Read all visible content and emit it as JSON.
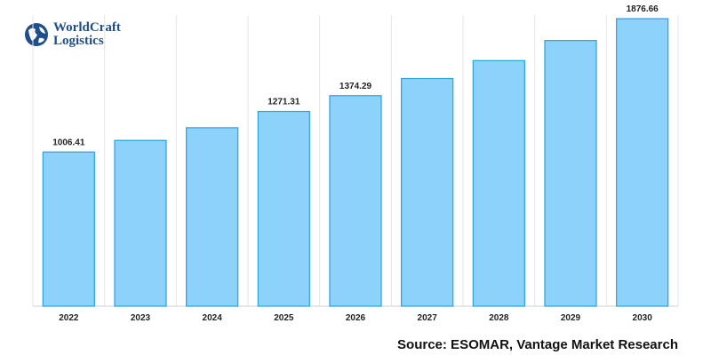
{
  "logo": {
    "line1": "WorldCraft",
    "line2": "Logistics",
    "icon": "globe-icon",
    "color": "#1f4f8a"
  },
  "source": "Source: ESOMAR, Vantage Market Research",
  "chart_data": {
    "type": "bar",
    "categories": [
      "2022",
      "2023",
      "2024",
      "2025",
      "2026",
      "2027",
      "2028",
      "2029",
      "2030"
    ],
    "values": [
      1006.41,
      1082,
      1165,
      1271.31,
      1374.29,
      1486,
      1603,
      1734,
      1876.66
    ],
    "data_labels": [
      "1006.41",
      "",
      "",
      "1271.31",
      "1374.29",
      "",
      "",
      "",
      "1876.66"
    ],
    "ylim": [
      0,
      1900
    ],
    "grid": true,
    "colors": {
      "bar_fill": "#8dd2fb",
      "bar_stroke": "#27a3dc"
    }
  }
}
